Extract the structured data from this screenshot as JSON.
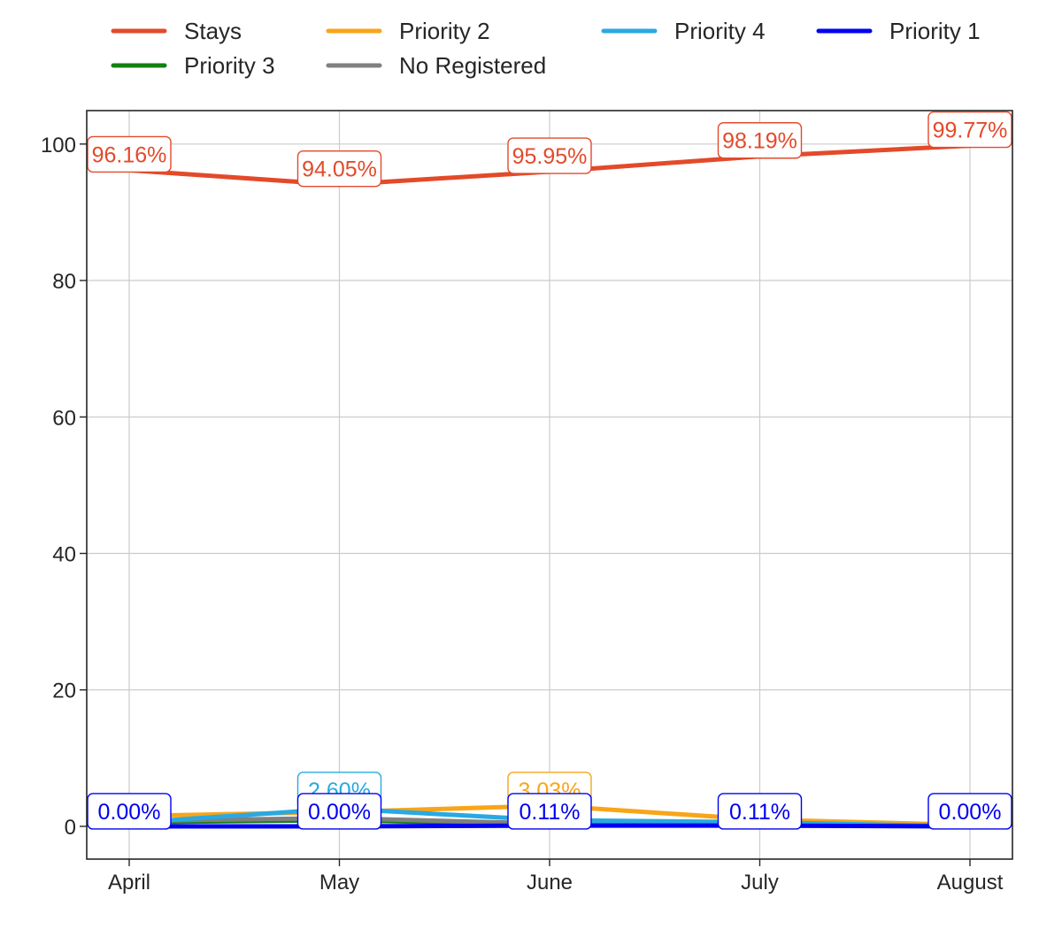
{
  "chart_data": {
    "type": "line",
    "title": "",
    "xlabel": "",
    "ylabel": "",
    "categories": [
      "April",
      "May",
      "June",
      "July",
      "August"
    ],
    "ylim": [
      -4.8,
      104.9
    ],
    "yticks": [
      0,
      20,
      40,
      60,
      80,
      100
    ],
    "grid": true,
    "legend_position": "top",
    "series": [
      {
        "name": "Stays",
        "color": "#e34a2a",
        "values": [
          96.16,
          94.05,
          95.95,
          98.19,
          99.77
        ],
        "labels": [
          "96.16%",
          "94.05%",
          "95.95%",
          "98.19%",
          "99.77%"
        ]
      },
      {
        "name": "Priority 3",
        "color": "#138013",
        "values": [
          0.6,
          0.9,
          0.3,
          0.2,
          0.0
        ],
        "labels": [
          "",
          "",
          "",
          "",
          ""
        ]
      },
      {
        "name": "Priority 2",
        "color": "#f8a519",
        "values": [
          1.5,
          2.1,
          3.03,
          1.0,
          0.2
        ],
        "labels": [
          "",
          "",
          "3.03%",
          "",
          ""
        ]
      },
      {
        "name": "No Registered",
        "color": "#808080",
        "values": [
          0.8,
          1.2,
          0.4,
          0.3,
          0.0
        ],
        "labels": [
          "",
          "",
          "",
          "",
          ""
        ]
      },
      {
        "name": "Priority 4",
        "color": "#29a9e1",
        "values": [
          0.5,
          2.6,
          0.9,
          0.6,
          0.0
        ],
        "labels": [
          "",
          "2.60%",
          "",
          "",
          ""
        ]
      },
      {
        "name": "Priority 1",
        "color": "#0000f0",
        "values": [
          0.0,
          0.0,
          0.11,
          0.11,
          0.0
        ],
        "labels": [
          "0.00%",
          "0.00%",
          "0.11%",
          "0.11%",
          "0.00%"
        ]
      }
    ]
  },
  "legend": {
    "items": [
      "Stays",
      "Priority 2",
      "Priority 4",
      "Priority 1",
      "Priority 3",
      "No Registered"
    ]
  }
}
